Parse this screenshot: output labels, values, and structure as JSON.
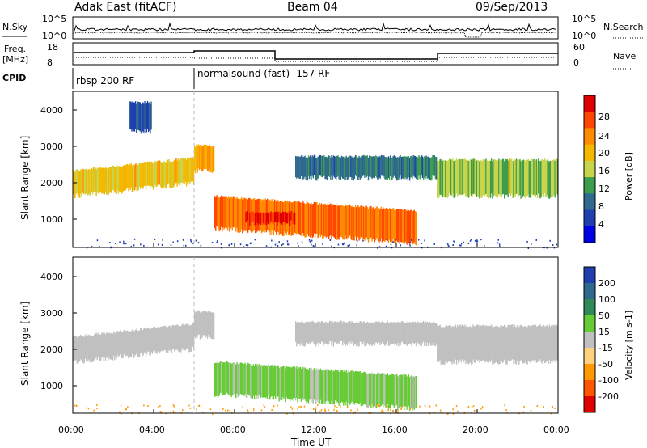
{
  "header": {
    "station": "Adak East (fitACF)",
    "beam": "Beam 04",
    "date": "09/Sep/2013"
  },
  "mini_panels": {
    "nsky_label": "N.Sky",
    "nsearch_label": "N.Search",
    "freq_label": "Freq.",
    "freq_unit": "[MHz]",
    "nave_label": "Nave",
    "cpid_label": "CPID",
    "left_ticks_top": [
      "10^5",
      "10^0"
    ],
    "right_ticks_top": [
      "10^5",
      "10^0"
    ],
    "left_ticks_freq": [
      "18",
      "8"
    ],
    "right_ticks_nave": [
      "60",
      "0"
    ],
    "cpid_segments": [
      "rbsp 200 RF",
      "normalsound (fast) -157 RF"
    ]
  },
  "power_colorbar": {
    "label": "Power [dB]",
    "ticks": [
      "28",
      "24",
      "20",
      "16",
      "12",
      "8",
      "4"
    ],
    "colors": [
      "#e00000",
      "#ff4500",
      "#ff8c00",
      "#f5b800",
      "#c8d44a",
      "#3c9d4e",
      "#2f6a8e",
      "#1f3fb0",
      "#0000e6"
    ]
  },
  "velocity_colorbar": {
    "label": "Velocity [m s-1]",
    "ticks": [
      "200",
      "100",
      "50",
      "15",
      "-15",
      "-50",
      "-100",
      "-200"
    ],
    "colors": [
      "#1f3fb0",
      "#2f6a8e",
      "#2e8b57",
      "#66cc33",
      "#c0c0c0",
      "#ffd27f",
      "#ff9900",
      "#ff5500",
      "#e00000"
    ]
  },
  "axes": {
    "ylabel": "Slant Range [km]",
    "xlabel": "Time UT",
    "y_ticks": [
      "4000",
      "3000",
      "2000",
      "1000"
    ],
    "x_ticks": [
      "00:00",
      "04:00",
      "08:00",
      "12:00",
      "16:00",
      "20:00",
      "00:00"
    ]
  },
  "chart_data": [
    {
      "type": "heatmap",
      "title": "Power",
      "xlabel": "Time UT",
      "ylabel": "Slant Range [km]",
      "xlim": [
        0,
        24
      ],
      "ylim": [
        180,
        4500
      ],
      "x_ticks": [
        0,
        4,
        8,
        12,
        16,
        20,
        24
      ],
      "y_ticks": [
        1000,
        2000,
        3000,
        4000
      ],
      "colorbar": {
        "label": "Power [dB]",
        "range": [
          0,
          30
        ]
      },
      "features": [
        {
          "start_hr": 0.0,
          "end_hr": 6.0,
          "range_km": [
            1600,
            2300
          ],
          "value_db": 18
        },
        {
          "start_hr": 6.0,
          "end_hr": 7.0,
          "range_km": [
            2300,
            3000
          ],
          "value_db": 20
        },
        {
          "start_hr": 7.0,
          "end_hr": 17.0,
          "range_km": [
            700,
            1600
          ],
          "value_db": 24
        },
        {
          "start_hr": 8.5,
          "end_hr": 11.0,
          "range_km": [
            850,
            1150
          ],
          "value_db": 28
        },
        {
          "start_hr": 18.0,
          "end_hr": 24.0,
          "range_km": [
            1600,
            2600
          ],
          "value_db": 14
        },
        {
          "start_hr": 11.0,
          "end_hr": 18.0,
          "range_km": [
            2100,
            2700
          ],
          "value_db": 8
        },
        {
          "start_hr": 2.8,
          "end_hr": 3.9,
          "range_km": [
            3400,
            4200
          ],
          "value_db": 6
        }
      ]
    },
    {
      "type": "heatmap",
      "title": "Velocity",
      "xlabel": "Time UT",
      "ylabel": "Slant Range [km]",
      "xlim": [
        0,
        24
      ],
      "ylim": [
        180,
        4500
      ],
      "x_ticks": [
        0,
        4,
        8,
        12,
        16,
        20,
        24
      ],
      "y_ticks": [
        1000,
        2000,
        3000,
        4000
      ],
      "colorbar": {
        "label": "Velocity [m s-1]",
        "range": [
          -200,
          200
        ]
      },
      "features": [
        {
          "start_hr": 0.0,
          "end_hr": 6.0,
          "range_km": [
            1600,
            2300
          ],
          "value_ms": 0
        },
        {
          "start_hr": 6.0,
          "end_hr": 7.0,
          "range_km": [
            2300,
            3000
          ],
          "value_ms": 0
        },
        {
          "start_hr": 7.0,
          "end_hr": 17.0,
          "range_km": [
            700,
            1600
          ],
          "value_ms": 30
        },
        {
          "start_hr": 18.0,
          "end_hr": 24.0,
          "range_km": [
            1600,
            2600
          ],
          "value_ms": 0
        },
        {
          "start_hr": 11.0,
          "end_hr": 18.0,
          "range_km": [
            2100,
            2700
          ],
          "value_ms": 0
        }
      ]
    }
  ]
}
